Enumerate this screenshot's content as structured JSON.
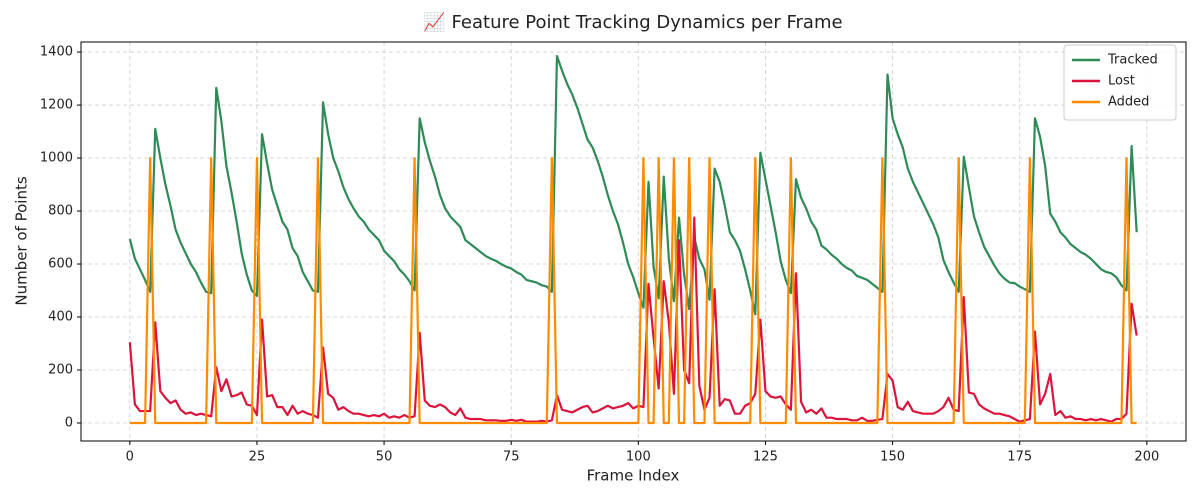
{
  "chart_data": {
    "type": "line",
    "title": "📈 Feature Point Tracking Dynamics per Frame",
    "x_label": "Frame Index",
    "y_label": "Number of Points",
    "x": [
      0,
      1,
      2,
      3,
      4,
      5,
      6,
      7,
      8,
      9,
      10,
      11,
      12,
      13,
      14,
      15,
      16,
      17,
      18,
      19,
      20,
      21,
      22,
      23,
      24,
      25,
      26,
      27,
      28,
      29,
      30,
      31,
      32,
      33,
      34,
      35,
      36,
      37,
      38,
      39,
      40,
      41,
      42,
      43,
      44,
      45,
      46,
      47,
      48,
      49,
      50,
      51,
      52,
      53,
      54,
      55,
      56,
      57,
      58,
      59,
      60,
      61,
      62,
      63,
      64,
      65,
      66,
      67,
      68,
      69,
      70,
      71,
      72,
      73,
      74,
      75,
      76,
      77,
      78,
      79,
      80,
      81,
      82,
      83,
      84,
      85,
      86,
      87,
      88,
      89,
      90,
      91,
      92,
      93,
      94,
      95,
      96,
      97,
      98,
      99,
      100,
      101,
      102,
      103,
      104,
      105,
      106,
      107,
      108,
      109,
      110,
      111,
      112,
      113,
      114,
      115,
      116,
      117,
      118,
      119,
      120,
      121,
      122,
      123,
      124,
      125,
      126,
      127,
      128,
      129,
      130,
      131,
      132,
      133,
      134,
      135,
      136,
      137,
      138,
      139,
      140,
      141,
      142,
      143,
      144,
      145,
      146,
      147,
      148,
      149,
      150,
      151,
      152,
      153,
      154,
      155,
      156,
      157,
      158,
      159,
      160,
      161,
      162,
      163,
      164,
      165,
      166,
      167,
      168,
      169,
      170,
      171,
      172,
      173,
      174,
      175,
      176,
      177,
      178,
      179,
      180,
      181,
      182,
      183,
      184,
      185,
      186,
      187,
      188,
      189,
      190,
      191,
      192,
      193,
      194,
      195,
      196,
      197,
      198
    ],
    "series": [
      {
        "name": "Tracked",
        "color": "#2e8b57",
        "values": [
          695,
          620,
          580,
          540,
          495,
          1110,
          1000,
          900,
          820,
          730,
          680,
          640,
          600,
          570,
          530,
          495,
          490,
          1265,
          1140,
          970,
          870,
          760,
          640,
          560,
          500,
          480,
          1090,
          980,
          880,
          820,
          760,
          730,
          660,
          630,
          570,
          535,
          500,
          495,
          1210,
          1090,
          1000,
          950,
          890,
          845,
          810,
          780,
          760,
          730,
          710,
          690,
          650,
          630,
          610,
          580,
          560,
          535,
          500,
          1150,
          1060,
          990,
          930,
          860,
          810,
          780,
          760,
          740,
          690,
          675,
          660,
          645,
          630,
          620,
          612,
          600,
          590,
          583,
          570,
          560,
          540,
          535,
          530,
          520,
          515,
          495,
          1385,
          1330,
          1280,
          1240,
          1190,
          1130,
          1070,
          1040,
          990,
          930,
          860,
          800,
          750,
          680,
          600,
          550,
          490,
          435,
          910,
          590,
          470,
          930,
          620,
          460,
          775,
          560,
          430,
          700,
          620,
          580,
          465,
          960,
          910,
          820,
          720,
          690,
          650,
          580,
          500,
          410,
          1020,
          920,
          820,
          720,
          610,
          540,
          490,
          920,
          850,
          810,
          760,
          730,
          670,
          655,
          635,
          620,
          600,
          585,
          575,
          555,
          548,
          540,
          525,
          510,
          495,
          1315,
          1150,
          1090,
          1040,
          960,
          910,
          870,
          830,
          790,
          750,
          700,
          615,
          570,
          530,
          495,
          1005,
          890,
          780,
          720,
          665,
          630,
          595,
          565,
          545,
          530,
          528,
          515,
          505,
          495,
          1150,
          1080,
          970,
          790,
          760,
          720,
          700,
          675,
          660,
          645,
          635,
          620,
          600,
          580,
          570,
          565,
          550,
          520,
          500,
          1045,
          720
        ]
      },
      {
        "name": "Lost",
        "color": "#dc143c",
        "values": [
          305,
          70,
          45,
          45,
          45,
          380,
          120,
          95,
          75,
          85,
          50,
          35,
          40,
          30,
          35,
          30,
          25,
          210,
          120,
          165,
          100,
          105,
          115,
          70,
          65,
          30,
          390,
          100,
          105,
          60,
          60,
          30,
          65,
          35,
          45,
          35,
          30,
          20,
          285,
          110,
          95,
          50,
          60,
          45,
          35,
          35,
          30,
          25,
          30,
          25,
          35,
          20,
          25,
          20,
          30,
          20,
          25,
          340,
          85,
          65,
          60,
          70,
          60,
          40,
          30,
          55,
          20,
          15,
          15,
          15,
          10,
          10,
          10,
          8,
          8,
          12,
          8,
          12,
          5,
          5,
          5,
          8,
          5,
          10,
          105,
          50,
          45,
          40,
          50,
          60,
          65,
          40,
          45,
          55,
          65,
          55,
          60,
          65,
          75,
          55,
          65,
          60,
          525,
          320,
          130,
          535,
          380,
          110,
          690,
          200,
          150,
          775,
          140,
          50,
          95,
          505,
          65,
          90,
          85,
          35,
          35,
          65,
          75,
          110,
          390,
          120,
          100,
          95,
          100,
          70,
          50,
          565,
          80,
          40,
          50,
          35,
          55,
          20,
          20,
          15,
          15,
          15,
          10,
          10,
          20,
          8,
          8,
          12,
          15,
          185,
          160,
          60,
          50,
          80,
          45,
          40,
          35,
          35,
          35,
          45,
          60,
          95,
          50,
          45,
          475,
          115,
          110,
          70,
          55,
          45,
          35,
          35,
          30,
          25,
          15,
          5,
          10,
          15,
          345,
          70,
          110,
          185,
          30,
          45,
          20,
          25,
          15,
          15,
          10,
          15,
          10,
          15,
          10,
          5,
          15,
          15,
          35,
          450,
          330
        ]
      },
      {
        "name": "Added",
        "color": "#ff8c00",
        "values": [
          0,
          0,
          0,
          0,
          1000,
          0,
          0,
          0,
          0,
          0,
          0,
          0,
          0,
          0,
          0,
          0,
          1000,
          0,
          0,
          0,
          0,
          0,
          0,
          0,
          0,
          1000,
          0,
          0,
          0,
          0,
          0,
          0,
          0,
          0,
          0,
          0,
          0,
          1000,
          0,
          0,
          0,
          0,
          0,
          0,
          0,
          0,
          0,
          0,
          0,
          0,
          0,
          0,
          0,
          0,
          0,
          0,
          1000,
          0,
          0,
          0,
          0,
          0,
          0,
          0,
          0,
          0,
          0,
          0,
          0,
          0,
          0,
          0,
          0,
          0,
          0,
          0,
          0,
          0,
          0,
          0,
          0,
          0,
          0,
          1000,
          0,
          0,
          0,
          0,
          0,
          0,
          0,
          0,
          0,
          0,
          0,
          0,
          0,
          0,
          0,
          0,
          0,
          1000,
          0,
          0,
          1000,
          0,
          0,
          1000,
          0,
          0,
          1000,
          0,
          0,
          0,
          1000,
          0,
          0,
          0,
          0,
          0,
          0,
          0,
          0,
          1000,
          0,
          0,
          0,
          0,
          0,
          0,
          1000,
          0,
          0,
          0,
          0,
          0,
          0,
          0,
          0,
          0,
          0,
          0,
          0,
          0,
          0,
          0,
          0,
          0,
          1000,
          0,
          0,
          0,
          0,
          0,
          0,
          0,
          0,
          0,
          0,
          0,
          0,
          0,
          0,
          1000,
          0,
          0,
          0,
          0,
          0,
          0,
          0,
          0,
          0,
          0,
          0,
          0,
          0,
          1000,
          0,
          0,
          0,
          0,
          0,
          0,
          0,
          0,
          0,
          0,
          0,
          0,
          0,
          0,
          0,
          0,
          0,
          0,
          1000,
          0,
          0
        ]
      }
    ],
    "xlim": [
      -9.6,
      207.7
    ],
    "ylim": [
      -68,
      1438
    ],
    "xticks": [
      0,
      25,
      50,
      75,
      100,
      125,
      150,
      175,
      200
    ],
    "yticks": [
      0,
      200,
      400,
      600,
      800,
      1000,
      1200,
      1400
    ],
    "grid": true,
    "legend": "upper right"
  }
}
